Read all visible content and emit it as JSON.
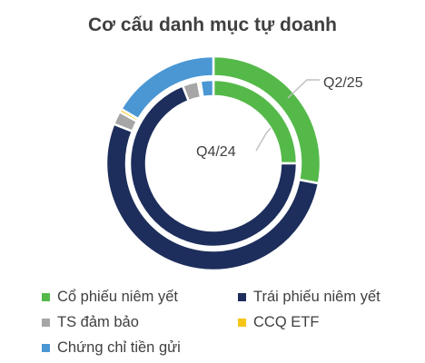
{
  "chart_data": {
    "type": "donut",
    "title": "Cơ cấu danh mục tự doanh",
    "categories": [
      "Cổ phiếu niêm yết",
      "Trái phiếu niêm yết",
      "TS đảm bảo",
      "CCQ ETF",
      "Chứng chỉ tiền gửi"
    ],
    "colors": [
      "#55b94a",
      "#1d2e5c",
      "#a6a6a6",
      "#f5c518",
      "#4a97d4"
    ],
    "series": [
      {
        "name": "Q2/25",
        "ring": "outer",
        "values": [
          28,
          53,
          2,
          0.5,
          16.5
        ]
      },
      {
        "name": "Q4/24",
        "ring": "inner",
        "values": [
          25,
          69,
          3,
          0.5,
          2.5
        ]
      }
    ],
    "legend_position": "bottom"
  }
}
